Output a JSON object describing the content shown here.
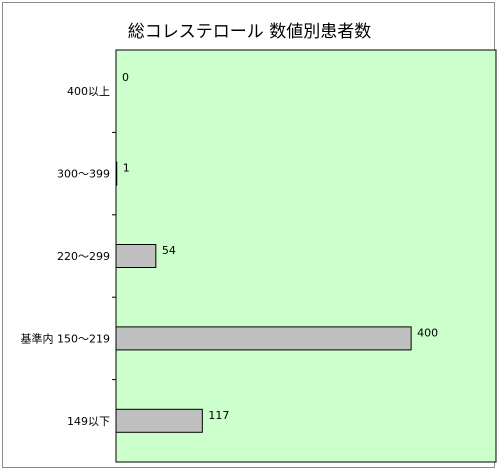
{
  "chart_data": {
    "type": "bar",
    "orientation": "horizontal",
    "title": "総コレステロール 数値別患者数",
    "categories": [
      "400以上",
      "300～399",
      "220～299",
      "基準内 150～219",
      "149以下"
    ],
    "values": [
      0,
      1,
      54,
      400,
      117
    ],
    "xlim": [
      0,
      515
    ],
    "grid": false,
    "legend": "none",
    "colors": {
      "plot_background": "#ccffcc",
      "bar_fill": "#c0c0c0",
      "bar_stroke": "#000000"
    }
  }
}
